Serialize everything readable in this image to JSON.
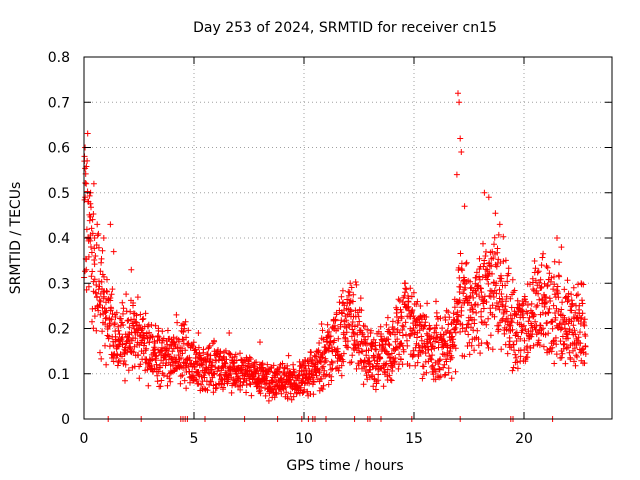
{
  "chart_data": {
    "type": "scatter",
    "title": "Day 253 of 2024, SRMTID for receiver cn15",
    "xlabel": "GPS time / hours",
    "ylabel": "SRMTID / TECUs",
    "xlim": [
      0,
      24
    ],
    "ylim": [
      0,
      0.8
    ],
    "x_ticks": [
      0,
      5,
      10,
      15,
      20
    ],
    "x_tick_labels": [
      "0",
      "5",
      "10",
      "15",
      "20"
    ],
    "y_ticks": [
      0,
      0.1,
      0.2,
      0.3,
      0.4,
      0.5,
      0.6,
      0.7,
      0.8
    ],
    "y_tick_labels": [
      "0",
      "0.1",
      "0.2",
      "0.3",
      "0.4",
      "0.5",
      "0.6",
      "0.7",
      "0.8"
    ],
    "grid": true,
    "marker": "+",
    "series_color": "#ff0000",
    "x_end": 22.8,
    "trend": [
      [
        0.0,
        0.47
      ],
      [
        0.15,
        0.42
      ],
      [
        0.3,
        0.36
      ],
      [
        0.5,
        0.3
      ],
      [
        0.8,
        0.27
      ],
      [
        1.1,
        0.23
      ],
      [
        1.5,
        0.17
      ],
      [
        2.0,
        0.19
      ],
      [
        2.5,
        0.18
      ],
      [
        3.0,
        0.15
      ],
      [
        3.5,
        0.14
      ],
      [
        4.0,
        0.14
      ],
      [
        4.5,
        0.15
      ],
      [
        5.0,
        0.12
      ],
      [
        5.5,
        0.11
      ],
      [
        6.0,
        0.12
      ],
      [
        6.5,
        0.11
      ],
      [
        7.0,
        0.1
      ],
      [
        7.5,
        0.1
      ],
      [
        8.0,
        0.09
      ],
      [
        8.5,
        0.085
      ],
      [
        9.0,
        0.08
      ],
      [
        9.5,
        0.08
      ],
      [
        10.0,
        0.09
      ],
      [
        10.5,
        0.11
      ],
      [
        11.0,
        0.14
      ],
      [
        11.5,
        0.17
      ],
      [
        12.0,
        0.22
      ],
      [
        12.4,
        0.21
      ],
      [
        12.8,
        0.15
      ],
      [
        13.2,
        0.13
      ],
      [
        13.6,
        0.15
      ],
      [
        14.0,
        0.16
      ],
      [
        14.5,
        0.2
      ],
      [
        15.0,
        0.2
      ],
      [
        15.5,
        0.17
      ],
      [
        16.0,
        0.16
      ],
      [
        16.5,
        0.17
      ],
      [
        16.8,
        0.18
      ],
      [
        17.0,
        0.28
      ],
      [
        17.3,
        0.25
      ],
      [
        17.6,
        0.22
      ],
      [
        18.0,
        0.27
      ],
      [
        18.3,
        0.3
      ],
      [
        18.6,
        0.3
      ],
      [
        19.0,
        0.28
      ],
      [
        19.5,
        0.2
      ],
      [
        20.0,
        0.2
      ],
      [
        20.5,
        0.24
      ],
      [
        21.0,
        0.25
      ],
      [
        21.5,
        0.24
      ],
      [
        21.8,
        0.24
      ],
      [
        22.2,
        0.2
      ],
      [
        22.8,
        0.2
      ]
    ],
    "spikes": [
      [
        0.02,
        0.57
      ],
      [
        0.05,
        0.6
      ],
      [
        0.1,
        0.52
      ],
      [
        0.3,
        0.5
      ],
      [
        0.45,
        0.52
      ],
      [
        0.6,
        0.43
      ],
      [
        0.9,
        0.4
      ],
      [
        1.2,
        0.43
      ],
      [
        1.35,
        0.37
      ],
      [
        2.15,
        0.33
      ],
      [
        17.0,
        0.72
      ],
      [
        17.05,
        0.7
      ],
      [
        17.1,
        0.62
      ],
      [
        17.15,
        0.59
      ],
      [
        16.95,
        0.54
      ],
      [
        17.3,
        0.47
      ],
      [
        18.2,
        0.5
      ],
      [
        18.4,
        0.49
      ],
      [
        18.9,
        0.43
      ],
      [
        21.5,
        0.4
      ],
      [
        21.7,
        0.38
      ],
      [
        20.8,
        0.34
      ],
      [
        12.1,
        0.3
      ],
      [
        14.6,
        0.3
      ],
      [
        11.7,
        0.27
      ],
      [
        20.4,
        0.31
      ],
      [
        22.6,
        0.3
      ],
      [
        4.2,
        0.23
      ],
      [
        4.5,
        0.21
      ],
      [
        5.2,
        0.19
      ],
      [
        6.6,
        0.19
      ],
      [
        8.0,
        0.17
      ],
      [
        9.3,
        0.14
      ],
      [
        10.8,
        0.21
      ],
      [
        16.0,
        0.26
      ],
      [
        19.8,
        0.25
      ]
    ],
    "zero_points": [
      1.1,
      2.6,
      4.4,
      4.5,
      4.6,
      4.7,
      5.5,
      7.3,
      8.8,
      9.9,
      10.2,
      10.4,
      10.5,
      11.0,
      12.3,
      12.9,
      13.0,
      13.5,
      14.9,
      17.1,
      19.4,
      19.5,
      21.3
    ]
  }
}
